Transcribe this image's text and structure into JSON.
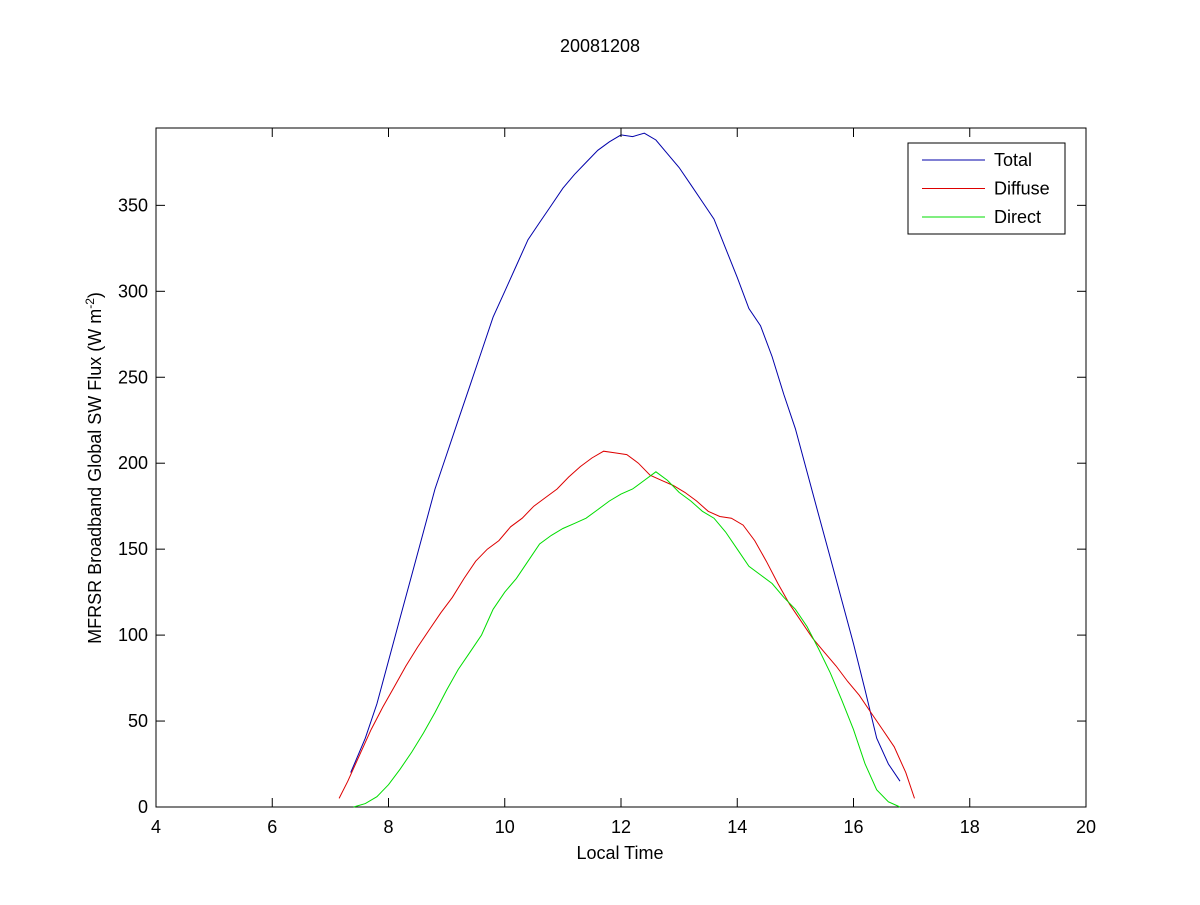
{
  "chart_data": {
    "type": "line",
    "title": "20081208",
    "xlabel": "Local Time",
    "ylabel": "MFRSR Broadband Global SW Flux (W m",
    "ylabel_sup": "-2",
    "ylabel_end": ")",
    "xlim": [
      4,
      20
    ],
    "ylim": [
      0,
      395
    ],
    "xticks": [
      4,
      6,
      8,
      10,
      12,
      14,
      16,
      18,
      20
    ],
    "yticks": [
      0,
      50,
      100,
      150,
      200,
      250,
      300,
      350
    ],
    "grid": false,
    "legend_position": "top-right",
    "series": [
      {
        "name": "Total",
        "color": "#0000aa",
        "x": [
          7.35,
          7.6,
          7.8,
          8.0,
          8.2,
          8.4,
          8.6,
          8.8,
          9.0,
          9.2,
          9.4,
          9.6,
          9.8,
          10.0,
          10.2,
          10.4,
          10.6,
          10.8,
          11.0,
          11.2,
          11.4,
          11.6,
          11.8,
          12.0,
          12.2,
          12.4,
          12.6,
          12.8,
          13.0,
          13.2,
          13.4,
          13.6,
          13.8,
          14.0,
          14.2,
          14.4,
          14.6,
          14.8,
          15.0,
          15.2,
          15.4,
          15.6,
          15.8,
          16.0,
          16.2,
          16.4,
          16.6,
          16.8
        ],
        "y": [
          20,
          40,
          60,
          85,
          110,
          135,
          160,
          185,
          205,
          225,
          245,
          265,
          285,
          300,
          315,
          330,
          340,
          350,
          360,
          368,
          375,
          382,
          387,
          391,
          390,
          392,
          388,
          380,
          372,
          362,
          352,
          342,
          325,
          308,
          290,
          280,
          262,
          240,
          220,
          195,
          170,
          145,
          120,
          95,
          68,
          40,
          25,
          15
        ]
      },
      {
        "name": "Diffuse",
        "color": "#dd0000",
        "x": [
          7.15,
          7.3,
          7.5,
          7.7,
          7.9,
          8.1,
          8.3,
          8.5,
          8.7,
          8.9,
          9.1,
          9.3,
          9.5,
          9.7,
          9.9,
          10.1,
          10.3,
          10.5,
          10.7,
          10.9,
          11.1,
          11.3,
          11.5,
          11.7,
          11.9,
          12.1,
          12.3,
          12.5,
          12.7,
          12.9,
          13.1,
          13.3,
          13.5,
          13.7,
          13.9,
          14.1,
          14.3,
          14.5,
          14.7,
          14.9,
          15.1,
          15.3,
          15.5,
          15.7,
          15.9,
          16.1,
          16.3,
          16.5,
          16.7,
          16.9,
          17.05
        ],
        "y": [
          5,
          15,
          30,
          45,
          58,
          70,
          82,
          93,
          103,
          113,
          122,
          133,
          143,
          150,
          155,
          163,
          168,
          175,
          180,
          185,
          192,
          198,
          203,
          207,
          206,
          205,
          200,
          193,
          190,
          187,
          183,
          178,
          172,
          169,
          168,
          164,
          155,
          143,
          130,
          118,
          108,
          98,
          90,
          82,
          73,
          65,
          55,
          45,
          35,
          20,
          5
        ]
      },
      {
        "name": "Direct",
        "color": "#00dd00",
        "x": [
          7.4,
          7.6,
          7.8,
          8.0,
          8.2,
          8.4,
          8.6,
          8.8,
          9.0,
          9.2,
          9.4,
          9.6,
          9.8,
          10.0,
          10.2,
          10.4,
          10.6,
          10.8,
          11.0,
          11.2,
          11.4,
          11.6,
          11.8,
          12.0,
          12.2,
          12.4,
          12.6,
          12.8,
          13.0,
          13.2,
          13.4,
          13.6,
          13.8,
          14.0,
          14.2,
          14.4,
          14.6,
          14.8,
          15.0,
          15.2,
          15.4,
          15.6,
          15.8,
          16.0,
          16.2,
          16.4,
          16.6,
          16.8
        ],
        "y": [
          0,
          2,
          6,
          13,
          22,
          32,
          43,
          55,
          68,
          80,
          90,
          100,
          115,
          125,
          133,
          143,
          153,
          158,
          162,
          165,
          168,
          173,
          178,
          182,
          185,
          190,
          195,
          190,
          183,
          178,
          172,
          168,
          160,
          150,
          140,
          135,
          130,
          122,
          115,
          105,
          92,
          78,
          62,
          45,
          25,
          10,
          3,
          0
        ]
      }
    ]
  }
}
